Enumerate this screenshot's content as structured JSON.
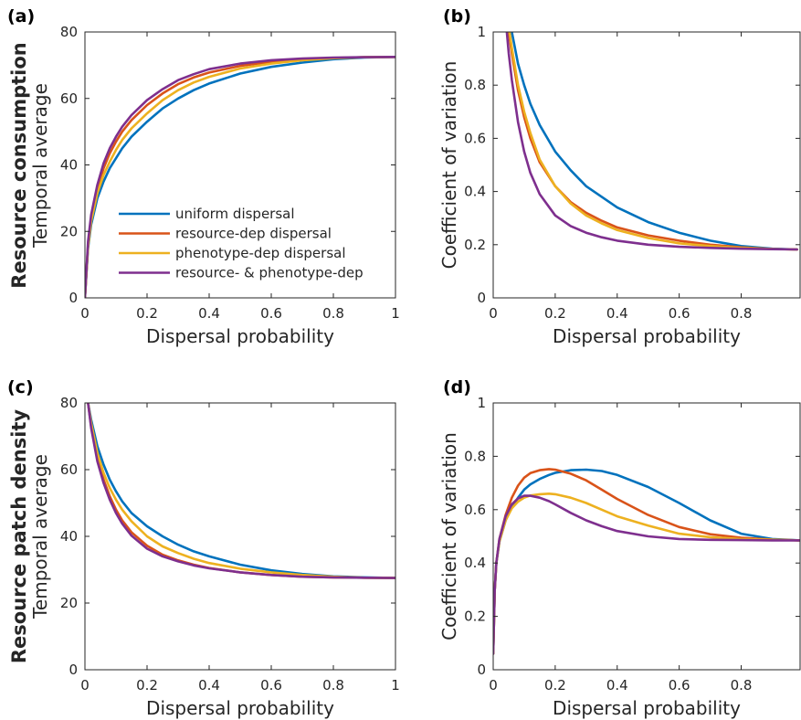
{
  "row_labels": [
    {
      "bold": "Resource consumption",
      "sub": "Temporal average"
    },
    {
      "bold": "Resource patch density",
      "sub": "Temporal average"
    }
  ],
  "colors": {
    "uniform": "#0072BD",
    "resource": "#D95319",
    "phenotype": "#EDB120",
    "both": "#7E2F8E"
  },
  "chart_data": [
    {
      "panel": "(a)",
      "type": "line",
      "xlabel": "Dispersal probability",
      "ylabel": "",
      "xlim": [
        0,
        1
      ],
      "ylim": [
        0,
        80
      ],
      "xticks": [
        "0",
        "0.2",
        "0.4",
        "0.6",
        "0.8",
        "1"
      ],
      "yticks": [
        "0",
        "20",
        "40",
        "60",
        "80"
      ],
      "legend": {
        "placement": "lower-left",
        "entries": [
          "uniform dispersal",
          "resource-dep dispersal",
          "phenotype-dep dispersal",
          "resource- & phenotype-dep"
        ]
      },
      "x": [
        0,
        0.01,
        0.02,
        0.04,
        0.06,
        0.08,
        0.1,
        0.12,
        0.15,
        0.2,
        0.25,
        0.3,
        0.35,
        0.4,
        0.5,
        0.6,
        0.7,
        0.8,
        0.9,
        1.0
      ],
      "series": [
        {
          "name": "uniform dispersal",
          "color_key": "uniform",
          "values": [
            0,
            15,
            22,
            30,
            35,
            39,
            42,
            45,
            48.5,
            53,
            57,
            60,
            62.5,
            64.5,
            67.5,
            69.5,
            70.8,
            71.8,
            72.3,
            72.5
          ]
        },
        {
          "name": "resource-dep dispersal",
          "color_key": "resource",
          "values": [
            0,
            16,
            24,
            33,
            39,
            43.5,
            47,
            50,
            53.5,
            58,
            61.5,
            64.3,
            66.3,
            67.8,
            69.8,
            71,
            71.8,
            72.2,
            72.4,
            72.5
          ]
        },
        {
          "name": "phenotype-dep dispersal",
          "color_key": "phenotype",
          "values": [
            0,
            15.5,
            23,
            31.5,
            37,
            41,
            44.5,
            47.5,
            51,
            55.5,
            59.5,
            62.5,
            64.8,
            66.5,
            69,
            70.5,
            71.5,
            72.1,
            72.4,
            72.5
          ]
        },
        {
          "name": "resource- & phenotype-dep",
          "color_key": "both",
          "values": [
            0,
            17,
            25,
            34,
            40.5,
            45,
            48.5,
            51.5,
            55,
            59.5,
            62.8,
            65.5,
            67.3,
            68.8,
            70.5,
            71.5,
            72,
            72.3,
            72.4,
            72.5
          ]
        }
      ]
    },
    {
      "panel": "(b)",
      "type": "line",
      "xlabel": "Dispersal probability",
      "ylabel": "Coefficient of variation",
      "xlim": [
        0,
        0.99
      ],
      "ylim": [
        0,
        1
      ],
      "xticks": [
        "0",
        "0.2",
        "0.4",
        "0.6",
        "0.8"
      ],
      "yticks": [
        "0",
        "0.2",
        "0.4",
        "0.6",
        "0.8",
        "1"
      ],
      "x": [
        0.04,
        0.05,
        0.06,
        0.08,
        0.1,
        0.12,
        0.15,
        0.2,
        0.25,
        0.3,
        0.35,
        0.4,
        0.5,
        0.6,
        0.7,
        0.8,
        0.9,
        0.98
      ],
      "series": [
        {
          "name": "uniform dispersal",
          "color_key": "uniform",
          "values": [
            1.2,
            1.08,
            1.0,
            0.88,
            0.8,
            0.73,
            0.65,
            0.55,
            0.48,
            0.42,
            0.38,
            0.34,
            0.285,
            0.245,
            0.215,
            0.195,
            0.185,
            0.182
          ]
        },
        {
          "name": "resource-dep dispersal",
          "color_key": "resource",
          "values": [
            1.1,
            1.0,
            0.92,
            0.78,
            0.68,
            0.6,
            0.51,
            0.42,
            0.36,
            0.32,
            0.29,
            0.265,
            0.235,
            0.215,
            0.2,
            0.19,
            0.184,
            0.182
          ]
        },
        {
          "name": "phenotype-dep dispersal",
          "color_key": "phenotype",
          "values": [
            1.1,
            1.02,
            0.94,
            0.8,
            0.7,
            0.62,
            0.52,
            0.42,
            0.355,
            0.31,
            0.28,
            0.255,
            0.225,
            0.205,
            0.195,
            0.188,
            0.184,
            0.182
          ]
        },
        {
          "name": "resource- & phenotype-dep",
          "color_key": "both",
          "values": [
            1.05,
            0.92,
            0.82,
            0.66,
            0.55,
            0.47,
            0.39,
            0.31,
            0.27,
            0.245,
            0.228,
            0.215,
            0.2,
            0.192,
            0.188,
            0.185,
            0.183,
            0.182
          ]
        }
      ]
    },
    {
      "panel": "(c)",
      "type": "line",
      "xlabel": "Dispersal probability",
      "ylabel": "",
      "xlim": [
        0,
        1
      ],
      "ylim": [
        0,
        80
      ],
      "xticks": [
        "0",
        "0.2",
        "0.4",
        "0.6",
        "0.8",
        "1"
      ],
      "yticks": [
        "0",
        "20",
        "40",
        "60",
        "80"
      ],
      "x": [
        0.01,
        0.02,
        0.04,
        0.06,
        0.08,
        0.1,
        0.12,
        0.15,
        0.2,
        0.25,
        0.3,
        0.35,
        0.4,
        0.5,
        0.6,
        0.7,
        0.8,
        0.9,
        1.0
      ],
      "series": [
        {
          "name": "uniform dispersal",
          "color_key": "uniform",
          "values": [
            80,
            75,
            67,
            61.5,
            57,
            53.5,
            50.5,
            47,
            43,
            40,
            37.5,
            35.5,
            34,
            31.5,
            29.8,
            28.7,
            28,
            27.7,
            27.5
          ]
        },
        {
          "name": "resource-dep dispersal",
          "color_key": "resource",
          "values": [
            80,
            73,
            63.5,
            57,
            52,
            48,
            44.8,
            41.2,
            37.2,
            34.5,
            32.8,
            31.5,
            30.5,
            29.2,
            28.4,
            27.9,
            27.7,
            27.6,
            27.5
          ]
        },
        {
          "name": "phenotype-dep dispersal",
          "color_key": "phenotype",
          "values": [
            80,
            74,
            65,
            59,
            54.5,
            51,
            48,
            44.5,
            40,
            37,
            35,
            33.3,
            32,
            30.3,
            29.2,
            28.4,
            27.9,
            27.6,
            27.5
          ]
        },
        {
          "name": "resource- & phenotype-dep",
          "color_key": "both",
          "values": [
            80,
            72.5,
            62.5,
            56,
            51,
            47,
            43.8,
            40.2,
            36.3,
            34,
            32.5,
            31.3,
            30.4,
            29.2,
            28.4,
            27.9,
            27.7,
            27.6,
            27.5
          ]
        }
      ]
    },
    {
      "panel": "(d)",
      "type": "line",
      "xlabel": "Dispersal probability",
      "ylabel": "Coefficient of variation",
      "xlim": [
        0,
        0.99
      ],
      "ylim": [
        0,
        1
      ],
      "xticks": [
        "0",
        "0.2",
        "0.4",
        "0.6",
        "0.8"
      ],
      "yticks": [
        "0",
        "0.2",
        "0.4",
        "0.6",
        "0.8",
        "1"
      ],
      "x": [
        0,
        0.005,
        0.01,
        0.02,
        0.04,
        0.06,
        0.08,
        0.1,
        0.12,
        0.15,
        0.18,
        0.2,
        0.25,
        0.3,
        0.35,
        0.4,
        0.5,
        0.6,
        0.7,
        0.8,
        0.9,
        0.99
      ],
      "series": [
        {
          "name": "uniform dispersal",
          "color_key": "uniform",
          "values": [
            0.06,
            0.3,
            0.4,
            0.48,
            0.56,
            0.61,
            0.645,
            0.675,
            0.695,
            0.715,
            0.73,
            0.738,
            0.748,
            0.75,
            0.745,
            0.73,
            0.685,
            0.625,
            0.56,
            0.51,
            0.49,
            0.485
          ]
        },
        {
          "name": "resource-dep dispersal",
          "color_key": "resource",
          "values": [
            0.06,
            0.3,
            0.4,
            0.49,
            0.58,
            0.645,
            0.69,
            0.72,
            0.737,
            0.748,
            0.752,
            0.75,
            0.735,
            0.71,
            0.675,
            0.64,
            0.58,
            0.535,
            0.508,
            0.495,
            0.488,
            0.485
          ]
        },
        {
          "name": "phenotype-dep dispersal",
          "color_key": "phenotype",
          "values": [
            0.06,
            0.3,
            0.4,
            0.48,
            0.56,
            0.605,
            0.63,
            0.645,
            0.653,
            0.658,
            0.66,
            0.658,
            0.645,
            0.625,
            0.6,
            0.575,
            0.54,
            0.51,
            0.497,
            0.49,
            0.487,
            0.485
          ]
        },
        {
          "name": "resource- & phenotype-dep",
          "color_key": "both",
          "values": [
            0.06,
            0.3,
            0.4,
            0.49,
            0.575,
            0.62,
            0.642,
            0.652,
            0.652,
            0.645,
            0.632,
            0.62,
            0.588,
            0.56,
            0.538,
            0.52,
            0.5,
            0.49,
            0.487,
            0.486,
            0.485,
            0.485
          ]
        }
      ]
    }
  ]
}
